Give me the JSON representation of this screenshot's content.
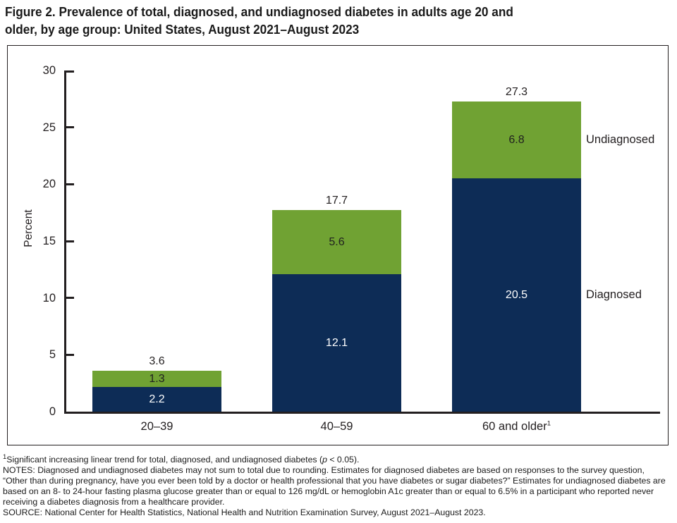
{
  "title": {
    "line1": "Figure 2. Prevalence of total, diagnosed, and undiagnosed diabetes in adults age 20 and",
    "line2": "older, by age group: United States, August 2021–August 2023",
    "full": "Figure 2. Prevalence of total, diagnosed, and undiagnosed diabetes in adults age 20 and older, by age group: United States, August 2021–August 2023"
  },
  "chart_data": {
    "type": "bar",
    "stacked": true,
    "title": "Prevalence of total, diagnosed, and undiagnosed diabetes in adults age 20 and older, by age group: United States, August 2021–August 2023",
    "xlabel": "",
    "ylabel": "Percent",
    "ylim": [
      0,
      30
    ],
    "yticks": [
      0,
      5,
      10,
      15,
      20,
      25,
      30
    ],
    "grid": false,
    "legend_position": "right-of-last-bar",
    "categories": [
      "20–39",
      "40–59",
      "60 and older"
    ],
    "category_superscripts": [
      "",
      "",
      "1"
    ],
    "totals": [
      3.6,
      17.7,
      27.3
    ],
    "series": [
      {
        "name": "Diagnosed",
        "values": [
          2.2,
          12.1,
          20.5
        ],
        "color": "#0d2c56",
        "label_color": "#ffffff"
      },
      {
        "name": "Undiagnosed",
        "values": [
          1.3,
          5.6,
          6.8
        ],
        "color": "#70a233",
        "label_color": "#1f1f1f"
      }
    ]
  },
  "colors": {
    "diagnosed": "#0d2c56",
    "undiagnosed": "#70a233",
    "axis": "#231f20",
    "text": "#231f20",
    "background": "#ffffff"
  },
  "footnotes": {
    "fn1_sup": "1",
    "fn1_pre": "Significant increasing linear trend for total, diagnosed, and undiagnosed diabetes (",
    "fn1_italic": "p",
    "fn1_post": " < 0.05).",
    "notes": "NOTES: Diagnosed and undiagnosed diabetes may not sum to total due to rounding. Estimates for diagnosed diabetes are based on responses to the survey question, “Other than during pregnancy, have you ever been told by a doctor or health professional that you have diabetes or sugar diabetes?” Estimates for undiagnosed diabetes are based on an 8- to 24-hour fasting plasma glucose greater than or equal to 126 mg/dL or hemoglobin A1c greater than or equal to 6.5% in a participant who reported never receiving a diabetes diagnosis from a healthcare provider.",
    "source": "SOURCE: National Center for Health Statistics, National Health and Nutrition Examination Survey, August 2021–August 2023."
  }
}
